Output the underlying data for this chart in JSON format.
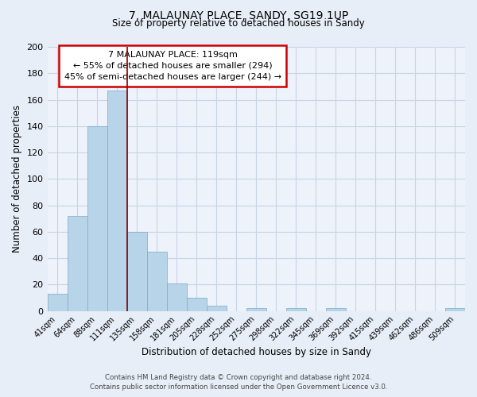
{
  "title_line1": "7, MALAUNAY PLACE, SANDY, SG19 1UP",
  "title_line2": "Size of property relative to detached houses in Sandy",
  "xlabel": "Distribution of detached houses by size in Sandy",
  "ylabel": "Number of detached properties",
  "bar_labels": [
    "41sqm",
    "64sqm",
    "88sqm",
    "111sqm",
    "135sqm",
    "158sqm",
    "181sqm",
    "205sqm",
    "228sqm",
    "252sqm",
    "275sqm",
    "298sqm",
    "322sqm",
    "345sqm",
    "369sqm",
    "392sqm",
    "415sqm",
    "439sqm",
    "462sqm",
    "486sqm",
    "509sqm"
  ],
  "bar_values": [
    13,
    72,
    140,
    167,
    60,
    45,
    21,
    10,
    4,
    0,
    2,
    0,
    2,
    0,
    2,
    0,
    0,
    0,
    0,
    0,
    2
  ],
  "bar_color": "#b8d4e8",
  "bar_edge_color": "#7aaac8",
  "ylim": [
    0,
    200
  ],
  "yticks": [
    0,
    20,
    40,
    60,
    80,
    100,
    120,
    140,
    160,
    180,
    200
  ],
  "vline_color": "#8b0000",
  "annotation_line1": "7 MALAUNAY PLACE: 119sqm",
  "annotation_line2": "← 55% of detached houses are smaller (294)",
  "annotation_line3": "45% of semi-detached houses are larger (244) →",
  "footer_line1": "Contains HM Land Registry data © Crown copyright and database right 2024.",
  "footer_line2": "Contains public sector information licensed under the Open Government Licence v3.0.",
  "background_color": "#e8eef8",
  "plot_bg_color": "#eef2fa",
  "grid_color": "#c8d4e4"
}
